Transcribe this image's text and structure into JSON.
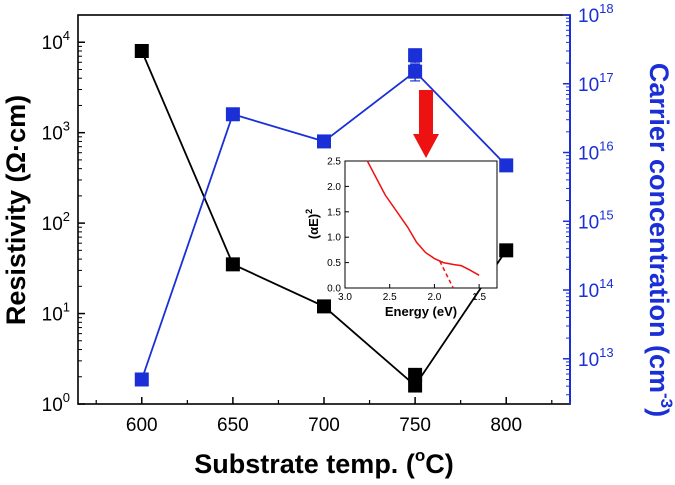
{
  "chart_data": {
    "type": "scatter",
    "title": "",
    "xlabel": "Substrate temp.",
    "xlabel_unit_prefix": "(",
    "xlabel_unit_sup": "o",
    "xlabel_unit_suffix": "C)",
    "ylabel_left": "Resistivity (Ω·cm)",
    "ylabel_right_main": "Carrier concentration (cm",
    "ylabel_right_sup": "-3",
    "ylabel_right_close": ")",
    "x_ticks": [
      "600",
      "650",
      "700",
      "750",
      "800"
    ],
    "xlim": [
      565,
      835
    ],
    "y_left_scale": "log",
    "y_left_lim": [
      1,
      20000
    ],
    "y_left_ticks": [
      {
        "base": "10",
        "exp": "0"
      },
      {
        "base": "10",
        "exp": "1"
      },
      {
        "base": "10",
        "exp": "2"
      },
      {
        "base": "10",
        "exp": "3"
      },
      {
        "base": "10",
        "exp": "4"
      }
    ],
    "y_right_scale": "log",
    "y_right_lim": [
      2200000000000.0,
      1e+18
    ],
    "y_right_ticks": [
      {
        "base": "10",
        "exp": "13"
      },
      {
        "base": "10",
        "exp": "14"
      },
      {
        "base": "10",
        "exp": "15"
      },
      {
        "base": "10",
        "exp": "16"
      },
      {
        "base": "10",
        "exp": "17"
      },
      {
        "base": "10",
        "exp": "18"
      }
    ],
    "series": [
      {
        "name": "Resistivity",
        "axis": "left",
        "color": "#000000",
        "line_x": [
          600,
          650,
          700,
          750,
          800
        ],
        "line_y": [
          8000,
          35,
          12,
          1.6,
          50
        ],
        "points": [
          {
            "x": 600,
            "y": 8000
          },
          {
            "x": 650,
            "y": 35
          },
          {
            "x": 700,
            "y": 12
          },
          {
            "x": 750,
            "y": 2.1
          },
          {
            "x": 750,
            "y": 1.6
          },
          {
            "x": 800,
            "y": 50
          }
        ]
      },
      {
        "name": "Carrier concentration",
        "axis": "right",
        "color": "#1a2fd6",
        "line_x": [
          600,
          650,
          700,
          750,
          800
        ],
        "line_y": [
          5000000000000.0,
          3.6e+16,
          1.45e+16,
          1.5e+17,
          6500000000000000.0
        ],
        "points": [
          {
            "x": 600,
            "y": 5000000000000.0
          },
          {
            "x": 650,
            "y": 3.6e+16
          },
          {
            "x": 700,
            "y": 1.45e+16
          },
          {
            "x": 750,
            "y": 2.6e+17
          },
          {
            "x": 750,
            "y": 1.5e+17
          },
          {
            "x": 800,
            "y": 6500000000000000.0
          }
        ]
      }
    ],
    "annotation": {
      "type": "arrow",
      "color": "#ee1111",
      "points_to": "inset"
    },
    "inset": {
      "type": "line",
      "xlabel": "Energy (eV)",
      "ylabel_base": "(αE)",
      "ylabel_sup": "2",
      "x_ticks": [
        "3.0",
        "2.5",
        "2.0",
        "1.5"
      ],
      "xlim": [
        3.0,
        1.3
      ],
      "y_ticks": [
        "0.0",
        "0.5",
        "1.0",
        "1.5",
        "2.0",
        "2.5"
      ],
      "ylim": [
        0,
        2.5
      ],
      "color": "#ee1111",
      "solid_x": [
        2.75,
        2.55,
        2.3,
        2.2,
        2.1,
        2.0,
        1.9,
        1.78,
        1.7,
        1.6,
        1.5
      ],
      "solid_y": [
        2.5,
        1.83,
        1.2,
        0.9,
        0.7,
        0.58,
        0.5,
        0.46,
        0.44,
        0.35,
        0.25
      ],
      "dashed_x": [
        1.94,
        1.79
      ],
      "dashed_y": [
        0.53,
        0.0
      ]
    }
  }
}
